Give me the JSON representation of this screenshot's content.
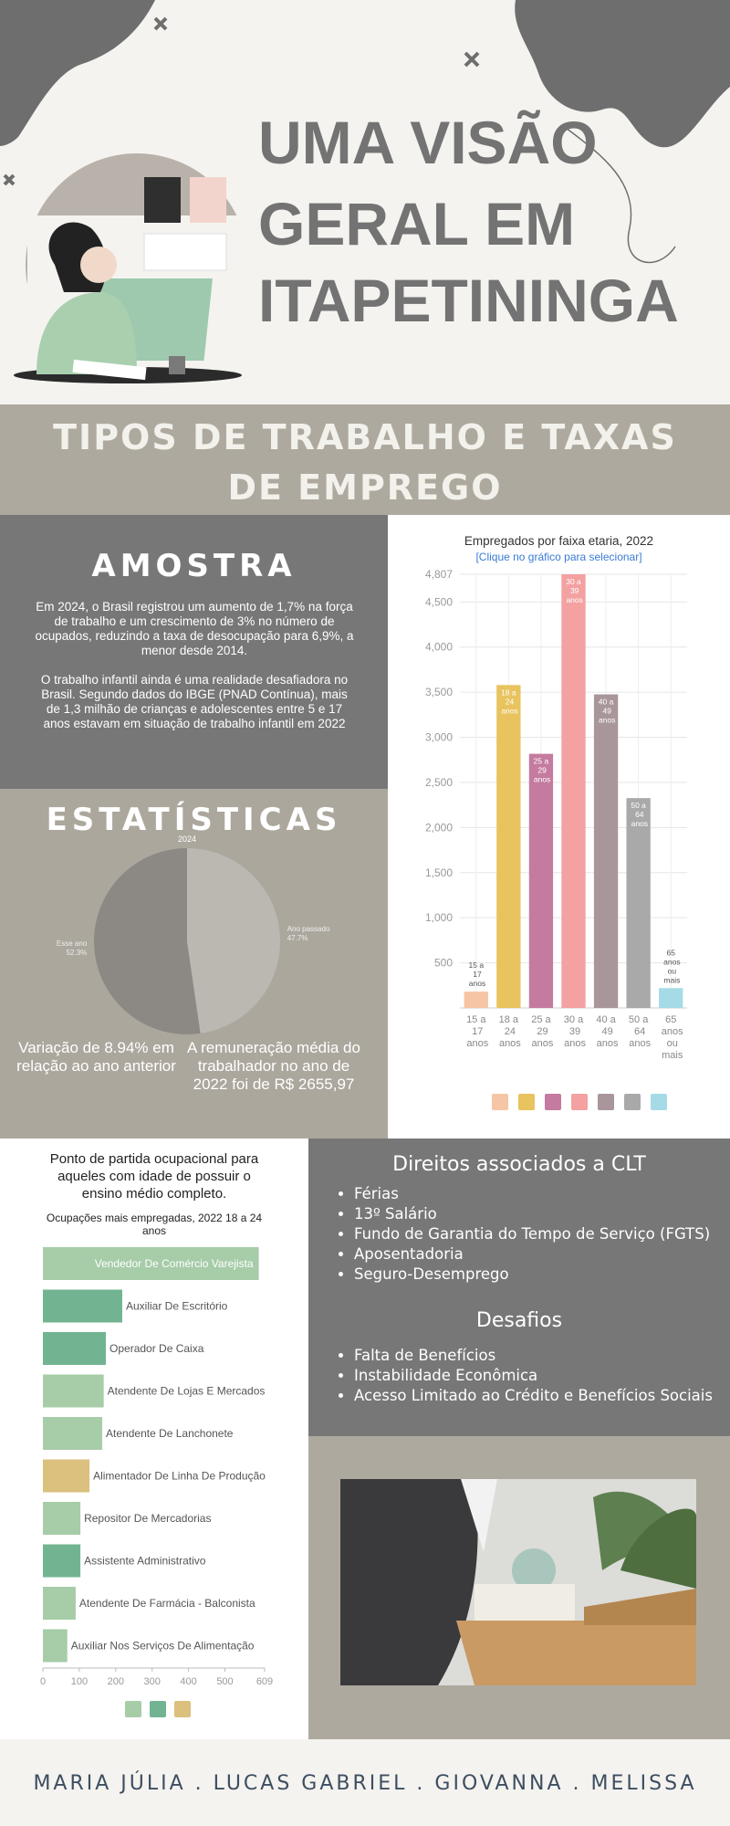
{
  "header": {
    "title_lines": [
      "UMA VISÃO",
      "GERAL EM",
      "ITAPETININGA"
    ]
  },
  "section_title": "TIPOS DE TRABALHO E TAXAS DE EMPREGO",
  "amostra": {
    "title": "AMOSTRA",
    "paragraphs": [
      "Em 2024, o Brasil registrou um aumento de 1,7% na força de trabalho e um crescimento de 3% no número de ocupados, reduzindo a taxa de desocupação para 6,9%, a menor desde 2014.",
      "O trabalho infantil ainda é uma realidade desafiadora no Brasil. Segundo dados do IBGE (PNAD Contínua), mais de 1,3 milhão de crianças e adolescentes entre 5 e 17 anos estavam em situação de trabalho infantil em 2022"
    ]
  },
  "estatisticas": {
    "title": "ESTATÍSTICAS",
    "notes": [
      "Variação de 8.94% em relação ao ano anterior",
      "A remuneração média do trabalhador no ano de 2022 foi de R$ 2655,97"
    ]
  },
  "ocupacional_intro": "Ponto de partida ocupacional para aqueles com idade de possuir o ensino médio completo.",
  "direitos": {
    "title": "Direitos associados a CLT",
    "items": [
      "Férias",
      "13º Salário",
      "Fundo de Garantia do Tempo de Serviço (FGTS)",
      "Aposentadoria",
      "Seguro-Desemprego"
    ]
  },
  "desafios": {
    "title": "Desafios",
    "items": [
      "Falta de Benefícios",
      "Instabilidade Econômica",
      "Acesso Limitado ao Crédito e Benefícios Sociais"
    ]
  },
  "footer": "MARIA JÚLIA . LUCAS GABRIEL . GIOVANNA . MELISSA",
  "chart_data": [
    {
      "type": "pie",
      "title": "2024",
      "categories": [
        "Esse ano",
        "Ano passado"
      ],
      "values": [
        52.3,
        47.7
      ],
      "value_labels": [
        "52.3%",
        "47.7%"
      ],
      "colors": [
        "#8c8985",
        "#bbb8b2"
      ]
    },
    {
      "type": "bar",
      "title": "Empregados por faixa etaria, 2022",
      "subtitle": "[Clique no gráfico para selecionar]",
      "categories": [
        "15 a 17 anos",
        "18 a 24 anos",
        "25 a 29 anos",
        "30 a 39 anos",
        "40 a 49 anos",
        "50 a 64 anos",
        "65 anos ou mais"
      ],
      "values": [
        181,
        3579,
        2817,
        4807,
        3476,
        2326,
        220
      ],
      "colors": [
        "#f6c5a6",
        "#e8c35e",
        "#c47b9f",
        "#f3a1a1",
        "#a8969a",
        "#a9a9a9",
        "#a5dbe7"
      ],
      "ylim": [
        0,
        4807
      ],
      "yticks": [
        500,
        {
          "value": 1000,
          "label": "1,000"
        },
        {
          "value": 1500,
          "label": "1,500"
        },
        {
          "value": 2000,
          "label": "2,000"
        },
        {
          "value": 2500,
          "label": "2,500"
        },
        {
          "value": 3000,
          "label": "3,000"
        },
        {
          "value": 3500,
          "label": "3,500"
        },
        {
          "value": 4000,
          "label": "4,000"
        },
        {
          "value": 4500,
          "label": "4,500"
        },
        {
          "value": 4807,
          "label": "4,807"
        }
      ],
      "grid": true
    },
    {
      "type": "barh",
      "title": "Ocupações mais empregadas, 2022 18 a 24 anos",
      "categories": [
        "Vendedor De Comércio Varejista",
        "Auxiliar De Escritório",
        "Operador De Caixa",
        "Atendente De Lojas E Mercados",
        "Atendente De Lanchonete",
        "Alimentador De Linha De Produção",
        "Repositor De Mercadorias",
        "Assistente Administrativo",
        "Atendente De Farmácia - Balconista",
        "Auxiliar Nos Serviços De Alimentação"
      ],
      "values": [
        593,
        218,
        173,
        167,
        163,
        128,
        103,
        103,
        90,
        67
      ],
      "colors": [
        "#a6cca8",
        "#72b492",
        "#72b492",
        "#a6cca8",
        "#a6cca8",
        "#dbc07e",
        "#a6cca8",
        "#72b492",
        "#a6cca8",
        "#a6cca8"
      ],
      "xlim": [
        0,
        609
      ],
      "xticks": [
        0,
        100,
        200,
        300,
        400,
        500,
        609
      ]
    }
  ]
}
